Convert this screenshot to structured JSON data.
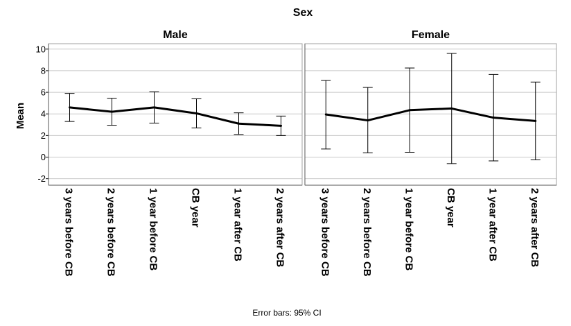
{
  "chart_data": {
    "type": "line",
    "title": "Sex",
    "ylabel": "Mean",
    "ylim": [
      -2.6,
      10.5
    ],
    "yticks": [
      -2,
      0,
      2,
      4,
      6,
      8,
      10
    ],
    "grid": true,
    "categories": [
      "3 years before CB",
      "2 years before CB",
      "1 year before CB",
      "CB year",
      "1 year after CB",
      "2 years after CB"
    ],
    "footnote": "Error bars: 95% CI",
    "panels": [
      {
        "name": "Male",
        "values": [
          4.6,
          4.2,
          4.6,
          4.05,
          3.1,
          2.9
        ],
        "ci_low": [
          3.3,
          2.95,
          3.15,
          2.7,
          2.1,
          2.0
        ],
        "ci_high": [
          5.9,
          5.45,
          6.05,
          5.4,
          4.1,
          3.8
        ]
      },
      {
        "name": "Female",
        "values": [
          3.95,
          3.4,
          4.35,
          4.5,
          3.65,
          3.35
        ],
        "ci_low": [
          0.75,
          0.4,
          0.45,
          -0.6,
          -0.35,
          -0.25
        ],
        "ci_high": [
          7.1,
          6.45,
          8.25,
          9.6,
          7.65,
          6.95
        ]
      }
    ]
  }
}
